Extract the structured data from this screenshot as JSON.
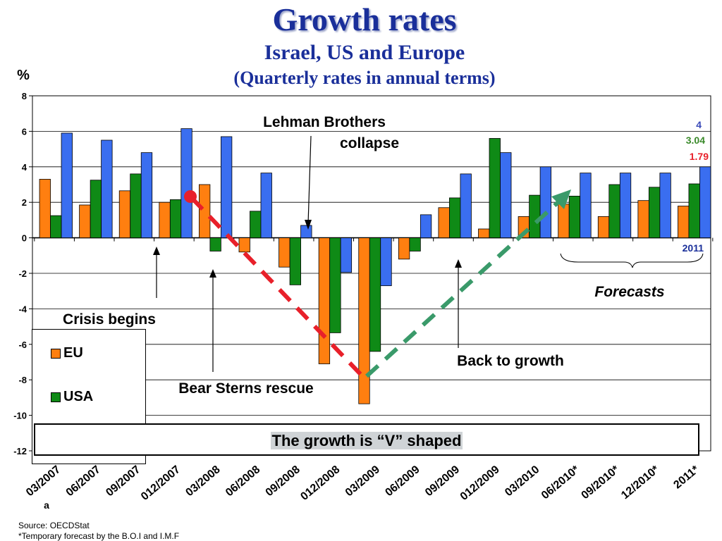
{
  "header": {
    "title": "Growth rates",
    "subtitle": "Israel, US and Europe",
    "subtitle2": "(Quarterly rates in annual terms)"
  },
  "colors": {
    "eu": "#ff7f10",
    "usa": "#0f8a16",
    "us": "#3a6ef0",
    "v_down": "#e8202a",
    "v_up": "#3a9a6a",
    "title": "#1a2f9a"
  },
  "chart_data": {
    "type": "bar",
    "ylabel": "%",
    "ylim": [
      -12,
      8
    ],
    "yticks": [
      8,
      6,
      4,
      2,
      0,
      -2,
      -4,
      -6,
      -8,
      -10,
      -12
    ],
    "categories": [
      "03/2007",
      "06/2007",
      "09/2007",
      "012/2007",
      "03/2008",
      "06/2008",
      "09/2008",
      "012/2008",
      "03/2009",
      "06/2009",
      "09/2009",
      "012/2009",
      "03/2010",
      "06/2010*",
      "09/2010*",
      "12/2010*",
      "2011*"
    ],
    "series": [
      {
        "name": "EU",
        "values": [
          3.3,
          1.85,
          2.65,
          2.0,
          3.0,
          -0.8,
          -1.65,
          -7.1,
          -9.35,
          -1.2,
          1.7,
          0.5,
          1.2,
          1.9,
          1.2,
          2.1,
          1.79
        ]
      },
      {
        "name": "USA",
        "values": [
          1.25,
          3.25,
          3.6,
          2.15,
          -0.75,
          1.5,
          -2.65,
          -5.35,
          -6.4,
          -0.75,
          2.25,
          5.6,
          2.4,
          2.35,
          3.0,
          2.85,
          3.04
        ]
      },
      {
        "name": "",
        "values": [
          5.9,
          5.5,
          4.8,
          6.15,
          5.7,
          3.65,
          0.7,
          -1.95,
          -2.7,
          1.3,
          3.6,
          4.8,
          4.0,
          3.65,
          3.65,
          3.65,
          4.0
        ]
      }
    ],
    "end_labels": [
      "4",
      "3.04",
      "1.79"
    ],
    "annotations": {
      "lehman": "Lehman Brothers collapse",
      "crisis": "Crisis begins",
      "bear": "Bear Sterns rescue",
      "back": "Back to growth",
      "forecasts": "Forecasts",
      "year": "2011"
    }
  },
  "banner": "The growth is “V” shaped",
  "footnotes": {
    "source": "Source: OECDStat",
    "temp": "*Temporary forecast by the B.O.I and I.M.F",
    "marker": "a"
  }
}
